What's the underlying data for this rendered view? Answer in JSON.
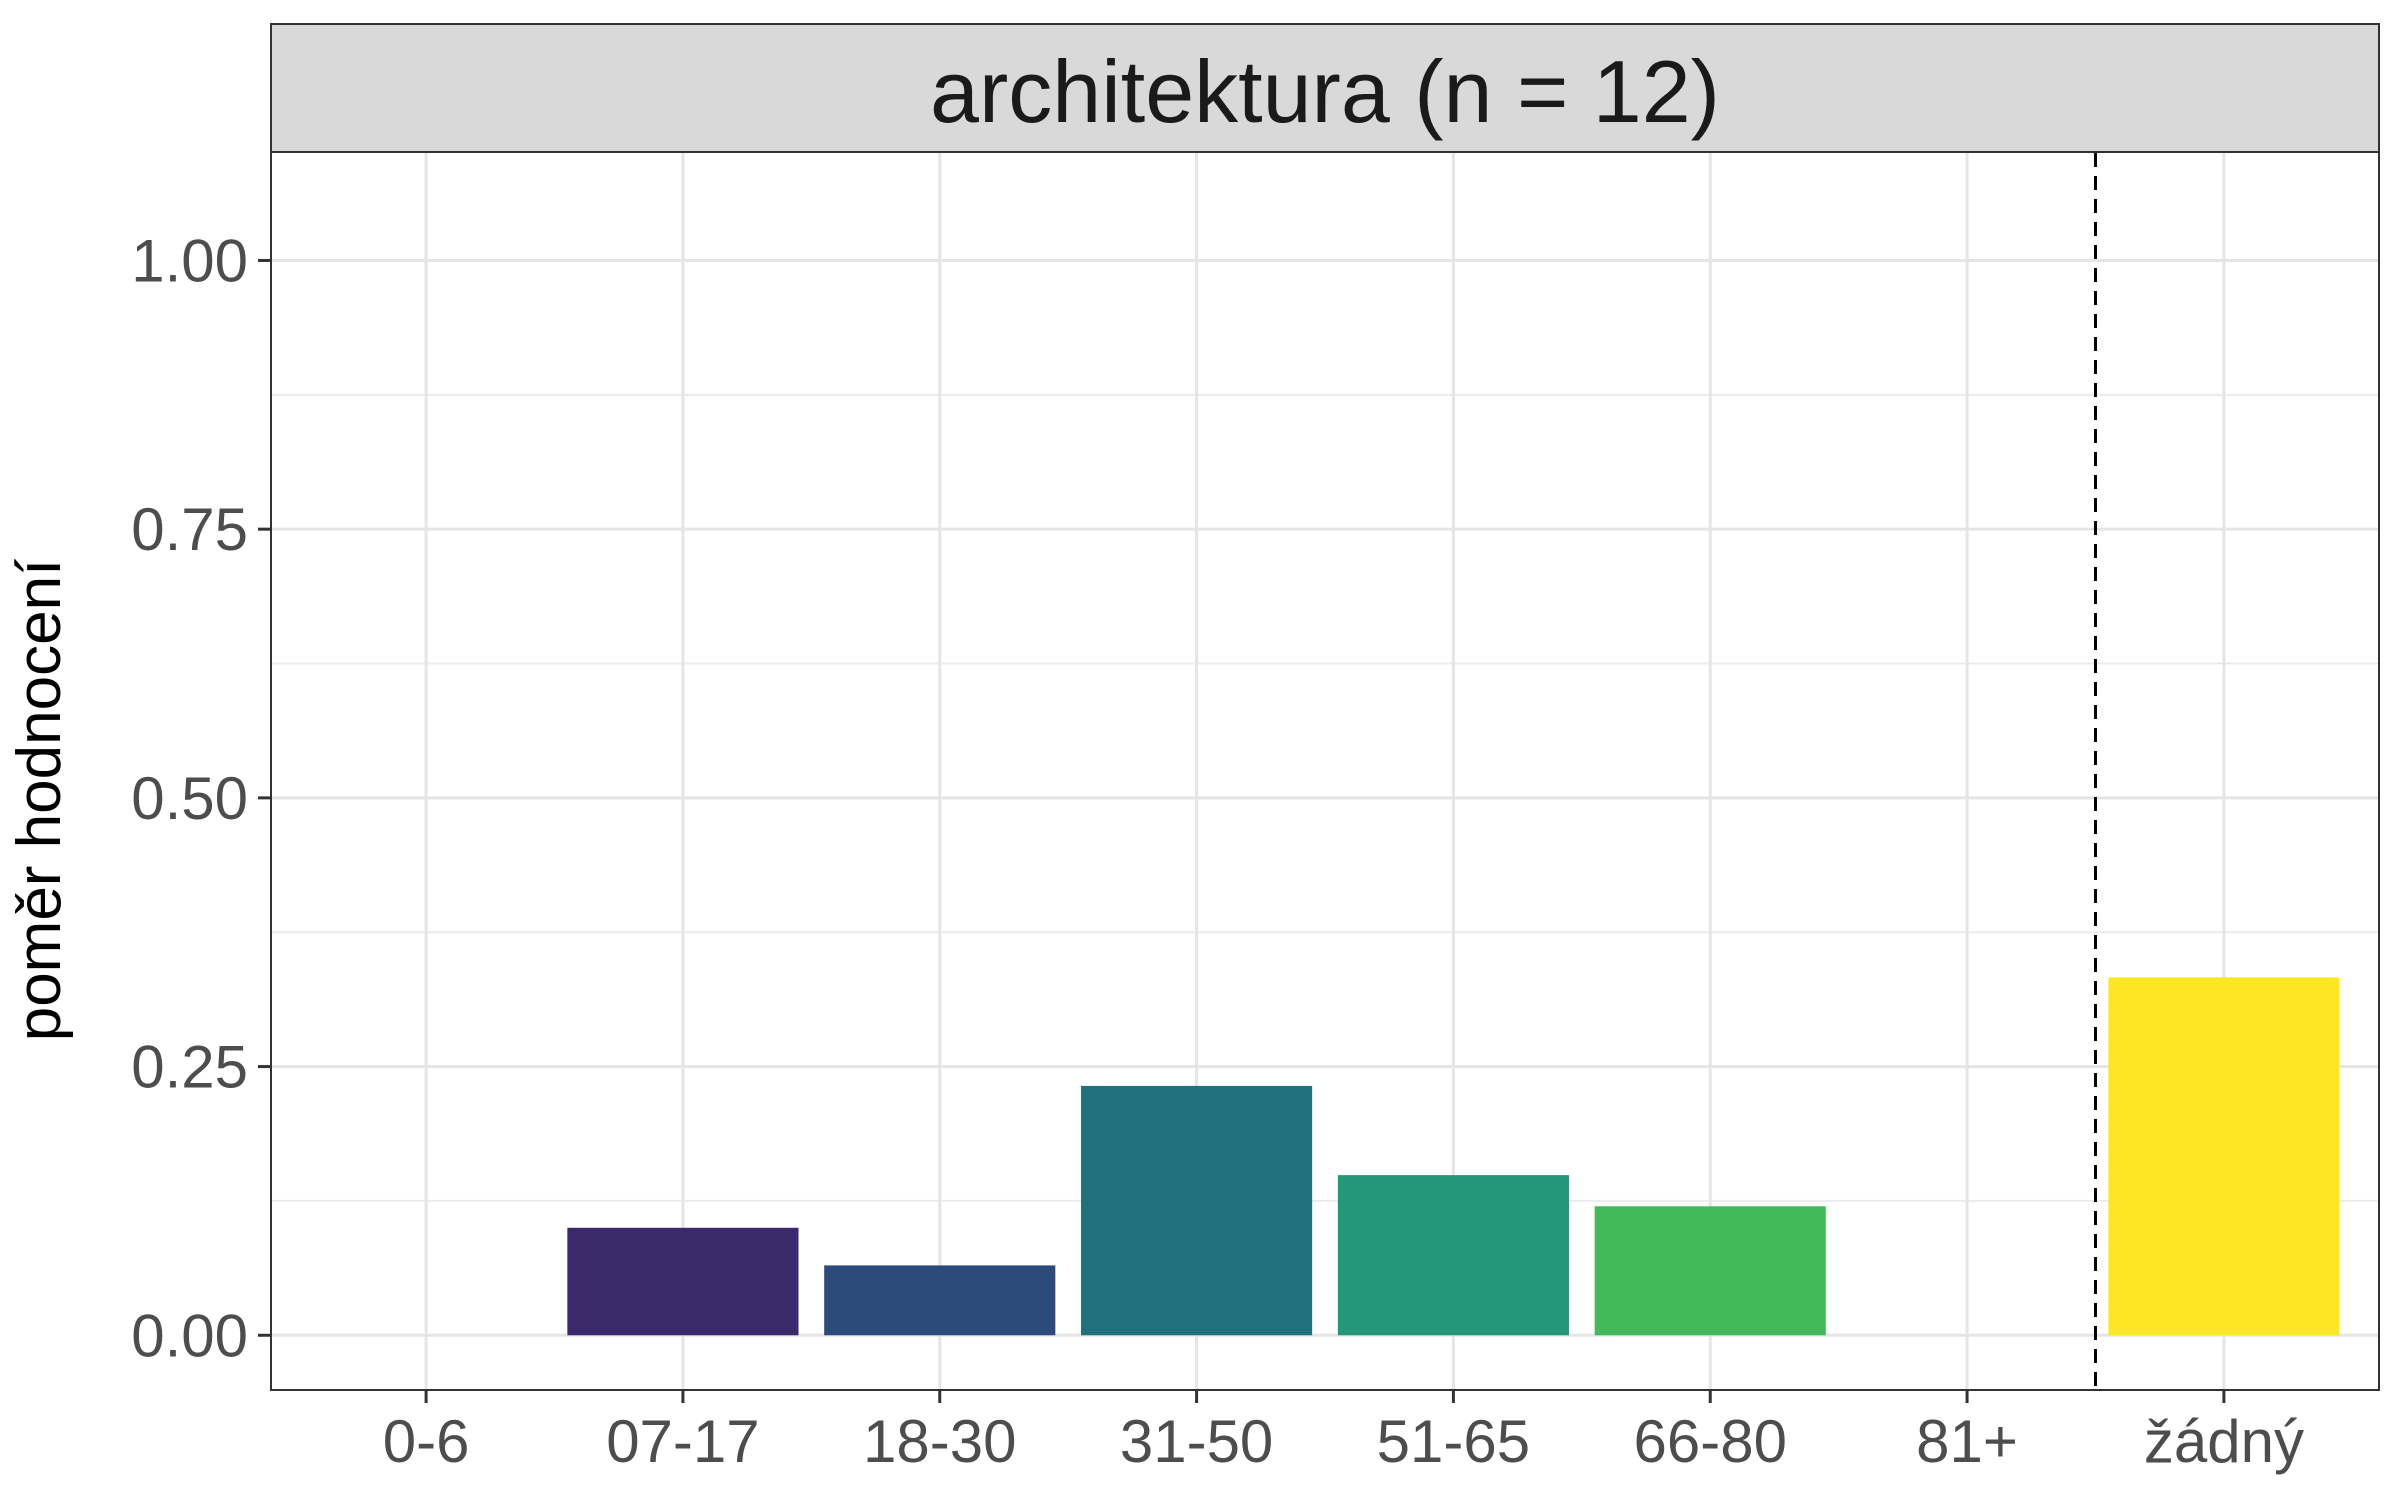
{
  "chart_data": {
    "type": "bar",
    "title": "architektura (n = 12)",
    "ylabel": "poměr hodnocení",
    "xlabel": "",
    "categories": [
      "0-6",
      "07-17",
      "18-30",
      "31-50",
      "51-65",
      "66-80",
      "81+",
      "žádný"
    ],
    "values": [
      0,
      0.1,
      0.065,
      0.232,
      0.149,
      0.12,
      0,
      0.333
    ],
    "colors": [
      "#440154",
      "#3b2a6b",
      "#2c4a7a",
      "#21717c",
      "#22977a",
      "#41b95a",
      "#8fd744",
      "#fde725"
    ],
    "ylim": [
      -0.05,
      1.1
    ],
    "yticks": [
      0,
      0.25,
      0.5,
      0.75,
      1.0
    ],
    "ytick_labels": [
      "0.00",
      "0.25",
      "0.50",
      "0.75",
      "1.00"
    ],
    "separator_after_category": "81+",
    "separator_style": "dashed",
    "grid": true,
    "legend": "none"
  }
}
